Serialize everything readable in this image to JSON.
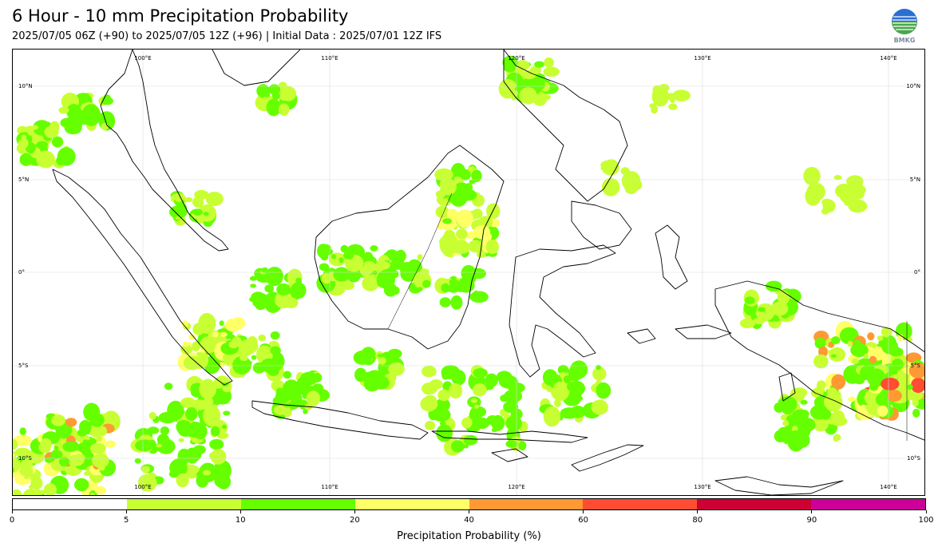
{
  "title": "6 Hour - 10 mm Precipitation Probability",
  "subtitle": "2025/07/05 06Z (+90) to 2025/07/05 12Z (+96) | Initial Data : 2025/07/01 12Z IFS",
  "logo_text": "BMKG",
  "map": {
    "longitude_labels": [
      "100°E",
      "110°E",
      "120°E",
      "130°E",
      "140°E"
    ],
    "latitude_labels": [
      "10°N",
      "5°N",
      "0°",
      "5°S",
      "10°S"
    ],
    "colors": {
      "coastline": "#000000",
      "gridline": "#d9d9d9"
    }
  },
  "colorbar": {
    "label": "Precipitation Probability (%)",
    "ticks": [
      "0",
      "5",
      "10",
      "20",
      "40",
      "60",
      "80",
      "90",
      "100"
    ],
    "colors": [
      "#ffffff",
      "#c8ff33",
      "#66ff00",
      "#ffff66",
      "#ff9933",
      "#ff4d33",
      "#cc0033",
      "#cc0099"
    ]
  }
}
